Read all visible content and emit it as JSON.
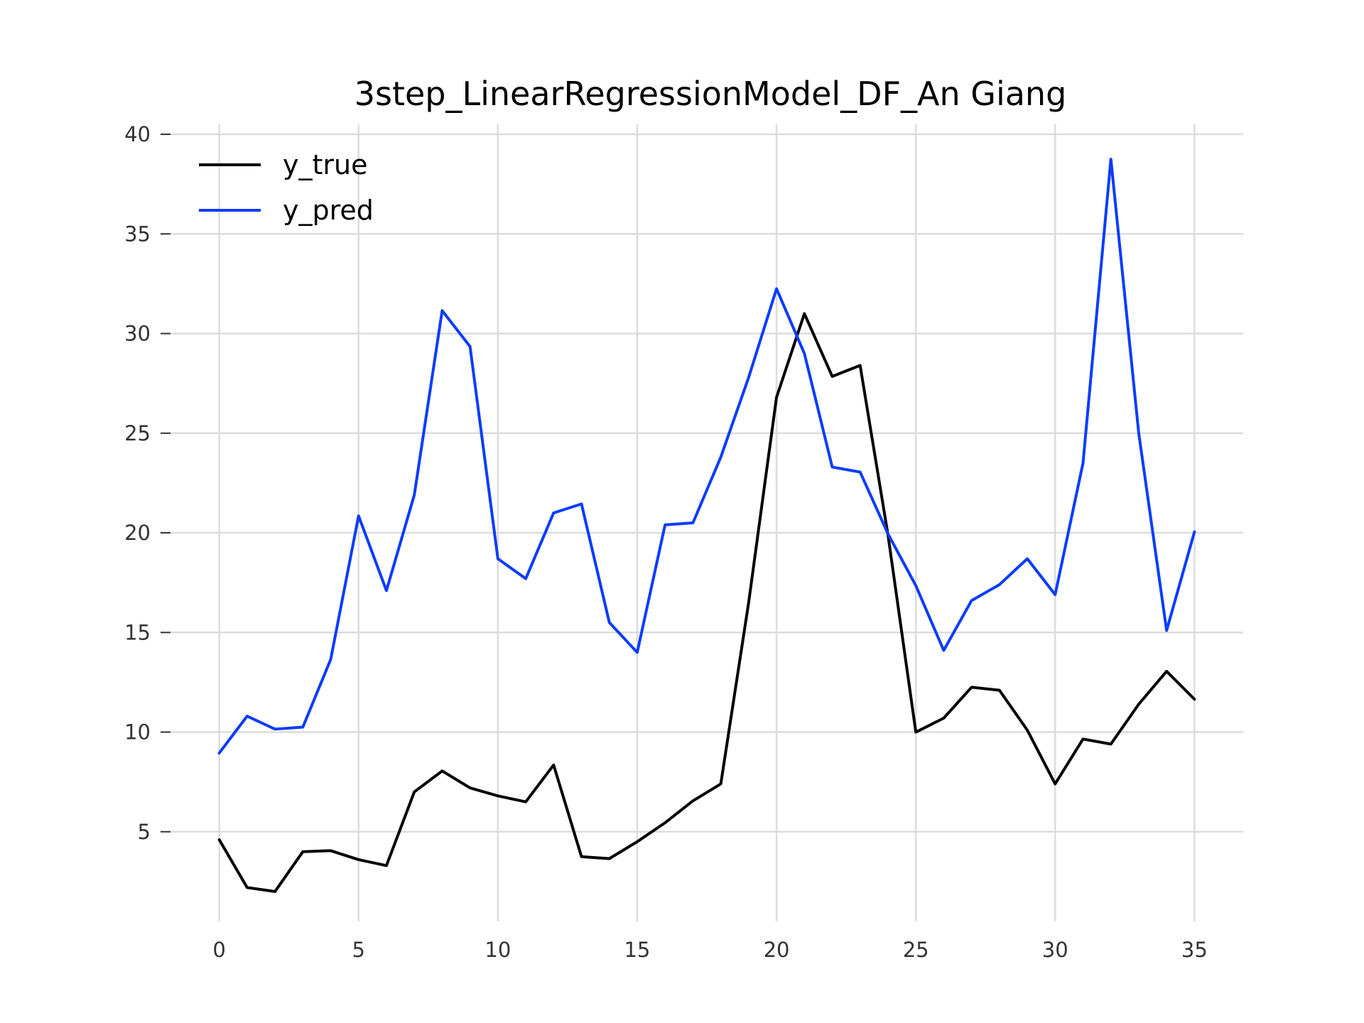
{
  "chart_data": {
    "type": "line",
    "title": "3step_LinearRegressionModel_DF_An Giang",
    "xlabel": "",
    "ylabel": "",
    "xlim": [
      -1.75,
      36.75
    ],
    "ylim": [
      0.5,
      40.5
    ],
    "x_ticks": [
      0,
      5,
      10,
      15,
      20,
      25,
      30,
      35
    ],
    "y_ticks": [
      5,
      10,
      15,
      20,
      25,
      30,
      35,
      40
    ],
    "grid": true,
    "legend_position": "top-left",
    "x": [
      0,
      1,
      2,
      3,
      4,
      5,
      6,
      7,
      8,
      9,
      10,
      11,
      12,
      13,
      14,
      15,
      16,
      17,
      18,
      19,
      20,
      21,
      22,
      23,
      24,
      25,
      26,
      27,
      28,
      29,
      30,
      31,
      32,
      33,
      34,
      35
    ],
    "series": [
      {
        "name": "y_true",
        "color": "#000000",
        "values": [
          4.6,
          2.2,
          2.0,
          4.0,
          4.05,
          3.6,
          3.3,
          7.0,
          8.05,
          7.2,
          6.8,
          6.5,
          8.35,
          3.75,
          3.65,
          4.5,
          5.45,
          6.55,
          7.4,
          16.5,
          26.8,
          31.0,
          27.85,
          28.4,
          19.9,
          10.0,
          10.7,
          12.25,
          12.1,
          10.1,
          7.4,
          9.65,
          9.4,
          11.4,
          13.05,
          11.65
        ],
        "legend_icon": "line-swatch-black"
      },
      {
        "name": "y_pred",
        "color": "#0a3cff",
        "values": [
          8.95,
          10.8,
          10.15,
          10.25,
          13.65,
          20.85,
          17.1,
          21.9,
          31.15,
          29.35,
          18.7,
          17.7,
          21.0,
          21.45,
          15.5,
          14.0,
          20.4,
          20.5,
          23.8,
          27.8,
          32.25,
          29.0,
          23.3,
          23.05,
          19.95,
          17.35,
          14.1,
          16.6,
          17.4,
          18.7,
          16.9,
          23.5,
          38.75,
          25.0,
          15.1,
          20.05
        ],
        "legend_icon": "line-swatch-blue"
      }
    ]
  }
}
